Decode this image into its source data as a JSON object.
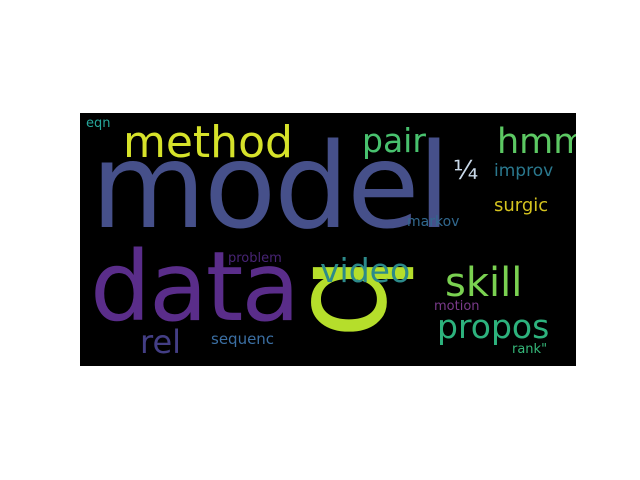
{
  "wordcloud": {
    "background": "#000000",
    "words": [
      {
        "text": "model",
        "color": "#46508a",
        "weight": 1.0
      },
      {
        "text": "data",
        "color": "#5a2d8a",
        "weight": 0.72
      },
      {
        "text": "b",
        "color": "#b5de2b",
        "weight": 0.7,
        "orientation": "vertical"
      },
      {
        "text": "method",
        "color": "#d6e22a",
        "weight": 0.42
      },
      {
        "text": "hmm",
        "color": "#5cc863",
        "weight": 0.34
      },
      {
        "text": "pair",
        "color": "#48c16e",
        "weight": 0.3
      },
      {
        "text": "skill",
        "color": "#7ad151",
        "weight": 0.36
      },
      {
        "text": "video",
        "color": "#2c8a8a",
        "weight": 0.3
      },
      {
        "text": "propos",
        "color": "#2db27d",
        "weight": 0.3
      },
      {
        "text": "rel",
        "color": "#433e85",
        "weight": 0.28
      },
      {
        "text": "¼",
        "color": "#c8d8e8",
        "weight": 0.2
      },
      {
        "text": "improv",
        "color": "#2a788e",
        "weight": 0.16
      },
      {
        "text": "surgic",
        "color": "#d4c31f",
        "weight": 0.16
      },
      {
        "text": "markov",
        "color": "#31688e",
        "weight": 0.13
      },
      {
        "text": "problem",
        "color": "#482475",
        "weight": 0.12
      },
      {
        "text": "sequenc",
        "color": "#3b6fa3",
        "weight": 0.14
      },
      {
        "text": "motion",
        "color": "#7a3a8a",
        "weight": 0.12
      },
      {
        "text": "rank\"",
        "color": "#35b779",
        "weight": 0.12
      },
      {
        "text": "eqn",
        "color": "#26a69a",
        "weight": 0.11
      }
    ]
  }
}
